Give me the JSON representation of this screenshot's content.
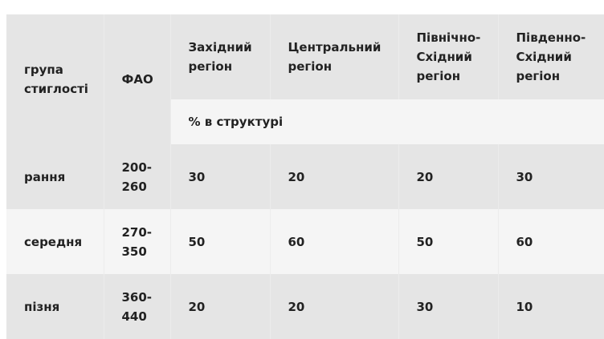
{
  "table": {
    "headers": {
      "group": "група стиглості",
      "fao": "ФАО",
      "regions": [
        "Західний регіон",
        "Центральний регіон",
        "Північно-Східний регіон",
        "Південно-Східний регіон"
      ],
      "unit": "% в структурі"
    },
    "rows": [
      {
        "group": "рання",
        "fao": "200-260",
        "values": [
          "30",
          "20",
          "20",
          "30"
        ]
      },
      {
        "group": "середня",
        "fao": "270-350",
        "values": [
          "50",
          "60",
          "50",
          "60"
        ]
      },
      {
        "group": "пізня",
        "fao": "360-440",
        "values": [
          "20",
          "20",
          "30",
          "10"
        ]
      }
    ]
  }
}
